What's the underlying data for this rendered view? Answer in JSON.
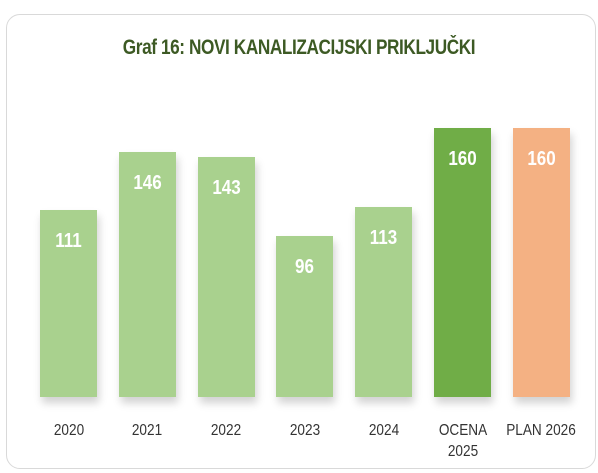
{
  "chart_data": {
    "type": "bar",
    "title": "Graf 16: NOVI KANALIZACIJSKI PRIKLJUČKI",
    "categories": [
      "2020",
      "2021",
      "2022",
      "2023",
      "2024",
      "OCENA\n2025",
      "PLAN 2026"
    ],
    "values": [
      111,
      146,
      143,
      96,
      113,
      160,
      160
    ],
    "colors": [
      "#a9d18e",
      "#a9d18e",
      "#a9d18e",
      "#a9d18e",
      "#a9d18e",
      "#70ad47",
      "#f4b183"
    ]
  }
}
